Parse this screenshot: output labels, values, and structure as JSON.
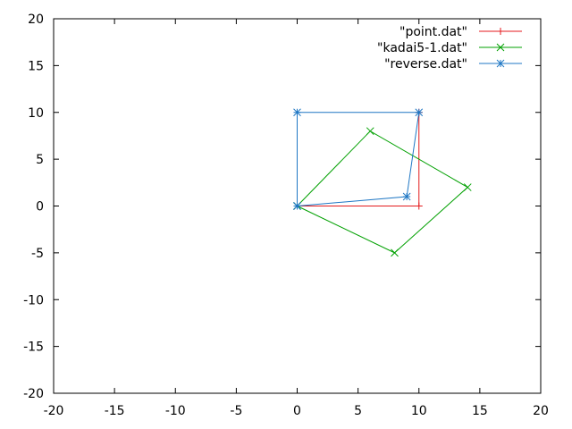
{
  "chart_data": {
    "type": "line",
    "title": "",
    "xlabel": "",
    "ylabel": "",
    "xlim": [
      -20,
      20
    ],
    "ylim": [
      -20,
      20
    ],
    "xticks": [
      -20,
      -15,
      -10,
      -5,
      0,
      5,
      10,
      15,
      20
    ],
    "yticks": [
      -20,
      -15,
      -10,
      -5,
      0,
      5,
      10,
      15,
      20
    ],
    "grid": false,
    "legend_position": "top-right",
    "series": [
      {
        "name": "\"point.dat\"",
        "color": "#e41a1c",
        "marker": "plus",
        "points": [
          [
            0,
            0
          ],
          [
            10,
            0
          ],
          [
            10,
            10
          ]
        ]
      },
      {
        "name": "\"kadai5-1.dat\"",
        "color": "#00a000",
        "marker": "cross",
        "points": [
          [
            0,
            0
          ],
          [
            8,
            -5
          ],
          [
            14,
            2
          ],
          [
            6,
            8
          ],
          [
            0,
            0
          ]
        ]
      },
      {
        "name": "\"reverse.dat\"",
        "color": "#1f77c4",
        "marker": "star",
        "points": [
          [
            0,
            0
          ],
          [
            9,
            1
          ],
          [
            10,
            10
          ],
          [
            0,
            10
          ],
          [
            0,
            0
          ]
        ]
      }
    ]
  }
}
